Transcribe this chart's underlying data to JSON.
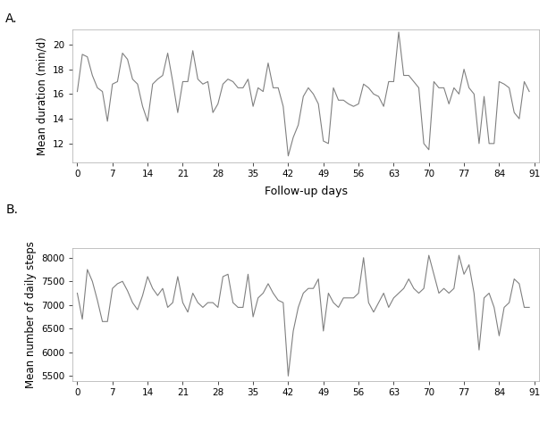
{
  "panel_A": {
    "x": [
      0,
      1,
      2,
      3,
      4,
      5,
      6,
      7,
      8,
      9,
      10,
      11,
      12,
      13,
      14,
      15,
      16,
      17,
      18,
      19,
      20,
      21,
      22,
      23,
      24,
      25,
      26,
      27,
      28,
      29,
      30,
      31,
      32,
      33,
      34,
      35,
      36,
      37,
      38,
      39,
      40,
      41,
      42,
      43,
      44,
      45,
      46,
      47,
      48,
      49,
      50,
      51,
      52,
      53,
      54,
      55,
      56,
      57,
      58,
      59,
      60,
      61,
      62,
      63,
      64,
      65,
      66,
      67,
      68,
      69,
      70,
      71,
      72,
      73,
      74,
      75,
      76,
      77,
      78,
      79,
      80,
      81,
      82,
      83,
      84,
      85,
      86,
      87,
      88,
      89,
      90
    ],
    "y": [
      16.2,
      19.2,
      19.0,
      17.5,
      16.5,
      16.2,
      13.8,
      16.8,
      17.0,
      19.3,
      18.8,
      17.2,
      16.8,
      15.0,
      13.8,
      16.8,
      17.2,
      17.5,
      19.3,
      17.0,
      14.5,
      17.0,
      17.0,
      19.5,
      17.2,
      16.8,
      17.0,
      14.5,
      15.2,
      16.8,
      17.2,
      17.0,
      16.5,
      16.5,
      17.2,
      15.0,
      16.5,
      16.2,
      18.5,
      16.5,
      16.5,
      15.0,
      11.0,
      12.5,
      13.5,
      15.8,
      16.5,
      16.0,
      15.2,
      12.2,
      12.0,
      16.5,
      15.5,
      15.5,
      15.2,
      15.0,
      15.2,
      16.8,
      16.5,
      16.0,
      15.8,
      15.0,
      17.0,
      17.0,
      21.0,
      17.5,
      17.5,
      17.0,
      16.5,
      12.0,
      11.5,
      17.0,
      16.5,
      16.5,
      15.2,
      16.5,
      16.0,
      18.0,
      16.5,
      16.0,
      12.0,
      15.8,
      12.0,
      12.0,
      17.0,
      16.8,
      16.5,
      14.5,
      14.0,
      17.0,
      16.2
    ],
    "ylim": [
      10.5,
      21.2
    ],
    "yticks": [
      12,
      14,
      16,
      18,
      20
    ],
    "ylabel": "Mean duration (min/d)",
    "xticks": [
      0,
      7,
      14,
      21,
      28,
      35,
      42,
      49,
      56,
      63,
      70,
      77,
      84,
      91
    ],
    "xlabel": "Follow-up days",
    "panel_label": "A."
  },
  "panel_B": {
    "x": [
      0,
      1,
      2,
      3,
      4,
      5,
      6,
      7,
      8,
      9,
      10,
      11,
      12,
      13,
      14,
      15,
      16,
      17,
      18,
      19,
      20,
      21,
      22,
      23,
      24,
      25,
      26,
      27,
      28,
      29,
      30,
      31,
      32,
      33,
      34,
      35,
      36,
      37,
      38,
      39,
      40,
      41,
      42,
      43,
      44,
      45,
      46,
      47,
      48,
      49,
      50,
      51,
      52,
      53,
      54,
      55,
      56,
      57,
      58,
      59,
      60,
      61,
      62,
      63,
      64,
      65,
      66,
      67,
      68,
      69,
      70,
      71,
      72,
      73,
      74,
      75,
      76,
      77,
      78,
      79,
      80,
      81,
      82,
      83,
      84,
      85,
      86,
      87,
      88,
      89,
      90
    ],
    "y": [
      7250,
      6700,
      7750,
      7500,
      7100,
      6650,
      6650,
      7350,
      7450,
      7500,
      7300,
      7050,
      6900,
      7200,
      7600,
      7350,
      7200,
      7350,
      6950,
      7050,
      7600,
      7050,
      6850,
      7250,
      7050,
      6950,
      7050,
      7050,
      6950,
      7600,
      7650,
      7050,
      6950,
      6950,
      7650,
      6750,
      7150,
      7250,
      7450,
      7250,
      7100,
      7050,
      5500,
      6450,
      6950,
      7250,
      7350,
      7350,
      7550,
      6450,
      7250,
      7050,
      6950,
      7150,
      7150,
      7150,
      7250,
      8000,
      7050,
      6850,
      7050,
      7250,
      6950,
      7150,
      7250,
      7350,
      7550,
      7350,
      7250,
      7350,
      8050,
      7650,
      7250,
      7350,
      7250,
      7350,
      8050,
      7650,
      7850,
      7250,
      6050,
      7150,
      7250,
      6950,
      6350,
      6950,
      7050,
      7550,
      7450,
      6950,
      6950
    ],
    "ylim": [
      5400,
      8200
    ],
    "yticks": [
      5500,
      6000,
      6500,
      7000,
      7500,
      8000
    ],
    "ylabel": "Mean number of daily steps",
    "xticks": [
      0,
      7,
      14,
      21,
      28,
      35,
      42,
      49,
      56,
      63,
      70,
      77,
      84,
      91
    ],
    "xlabel": "",
    "panel_label": "B."
  },
  "line_color": "#808080",
  "line_width": 0.8,
  "bg_color": "#ffffff",
  "panel_bg": "#ffffff",
  "spine_color": "#aaaaaa",
  "fig_width": 6.22,
  "fig_height": 4.74,
  "dpi": 100,
  "tick_fontsize": 7.5,
  "label_fontsize": 8.5
}
